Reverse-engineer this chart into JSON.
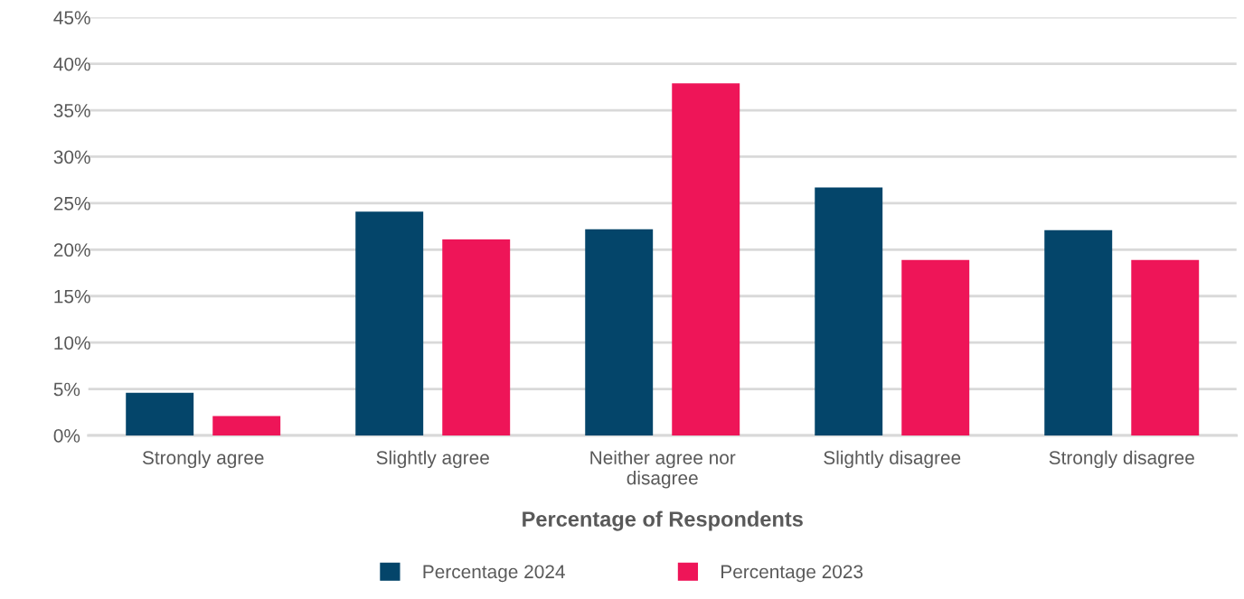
{
  "chart_data": {
    "type": "bar",
    "xlabel": "Percentage of Respondents",
    "categories": [
      "Strongly agree",
      "Slightly agree",
      "Neither agree nor disagree",
      "Slightly disagree",
      "Strongly disagree"
    ],
    "series": [
      {
        "name": "Percentage 2024",
        "color": "#04456a",
        "values": [
          4.6,
          24.1,
          22.2,
          26.7,
          22.1
        ]
      },
      {
        "name": "Percentage 2023",
        "color": "#ee1558",
        "values": [
          2.1,
          21.1,
          37.9,
          18.9,
          18.9
        ]
      }
    ],
    "ylim": [
      0,
      45
    ],
    "yticks": [
      {
        "value": 0,
        "label": "0%"
      },
      {
        "value": 5,
        "label": "5%"
      },
      {
        "value": 10,
        "label": "10%"
      },
      {
        "value": 15,
        "label": "15%"
      },
      {
        "value": 20,
        "label": "20%"
      },
      {
        "value": 25,
        "label": "25%"
      },
      {
        "value": 30,
        "label": "30%"
      },
      {
        "value": 35,
        "label": "35%"
      },
      {
        "value": 40,
        "label": "40%"
      },
      {
        "value": 45,
        "label": "45%"
      }
    ],
    "grid": "y",
    "legend": "bottom"
  }
}
